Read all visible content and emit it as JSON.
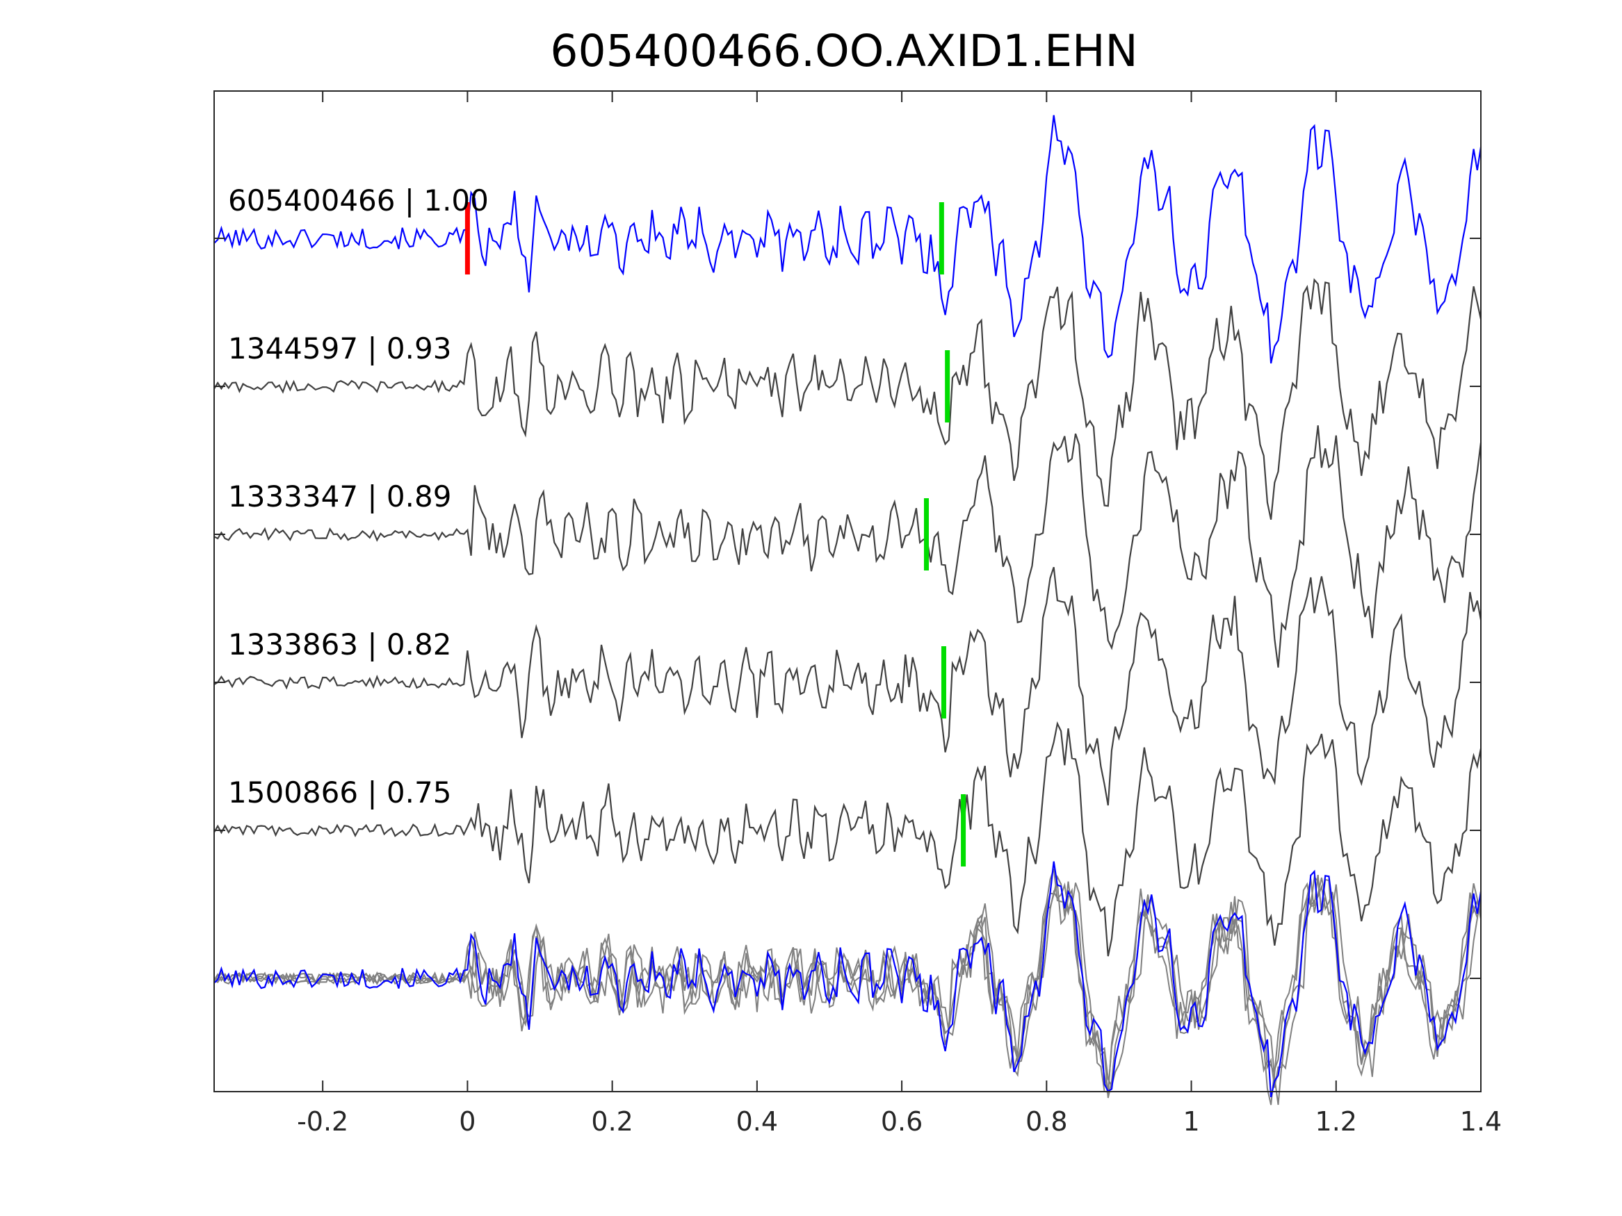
{
  "chart_data": {
    "type": "line",
    "title": "605400466.OO.AXID1.EHN",
    "xlabel": "",
    "ylabel": "",
    "xlim": [
      -0.35,
      1.4
    ],
    "x_ticks": [
      -0.2,
      0,
      0.2,
      0.4,
      0.6,
      0.8,
      1,
      1.2,
      1.4
    ],
    "x_tick_labels": [
      "-0.2",
      "0",
      "0.2",
      "0.4",
      "0.6",
      "0.8",
      "1",
      "1.2",
      "1.4"
    ],
    "y_ticks_shown": false,
    "grid": false,
    "legend": "none",
    "reference_pick_time": 0.0,
    "traces": [
      {
        "label": "605400466 | 1.00",
        "event_id": "605400466",
        "correlation": "1.00",
        "color": "#0000ff",
        "is_template": true,
        "pick_time": 0.655
      },
      {
        "label": "1344597 | 0.93",
        "event_id": "1344597",
        "correlation": "0.93",
        "color": "#404040",
        "is_template": false,
        "pick_time": 0.663
      },
      {
        "label": "1333347 | 0.89",
        "event_id": "1333347",
        "correlation": "0.89",
        "color": "#404040",
        "is_template": false,
        "pick_time": 0.634
      },
      {
        "label": "1333863 | 0.82",
        "event_id": "1333863",
        "correlation": "0.82",
        "color": "#404040",
        "is_template": false,
        "pick_time": 0.658
      },
      {
        "label": "1500866 | 0.75",
        "event_id": "1500866",
        "correlation": "0.75",
        "color": "#404040",
        "is_template": false,
        "pick_time": 0.685
      }
    ],
    "stack": {
      "template_color": "#0000ff",
      "overlay_color": "#808080"
    },
    "reference_pick_color": "#ff0000",
    "pick_color": "#00dd00"
  }
}
